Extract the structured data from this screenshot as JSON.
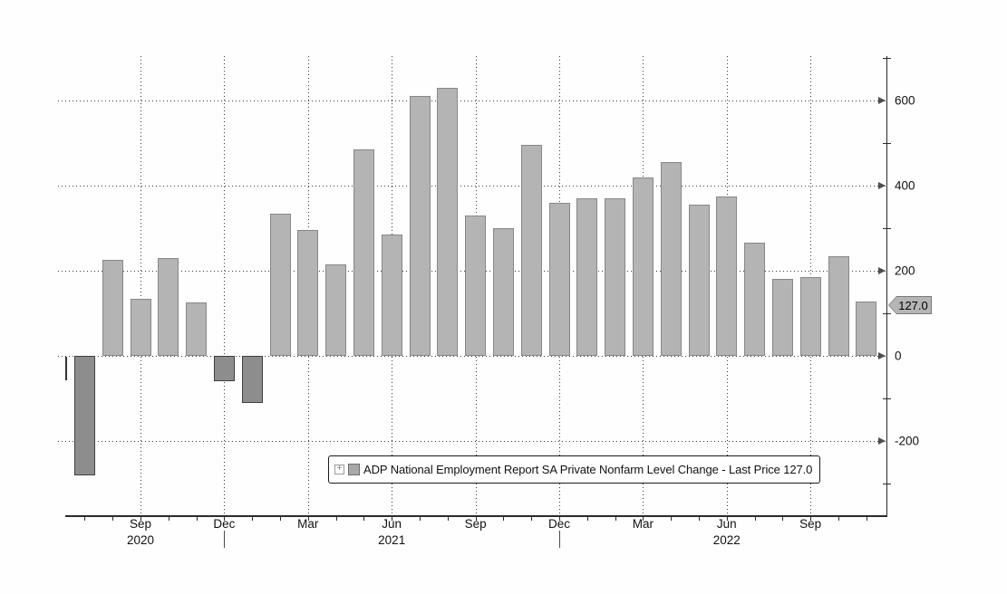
{
  "legend": {
    "expand_icon_label": "+",
    "label": "ADP National Employment Report SA Private Nonfarm Level Change - Last Price 127.0"
  },
  "last_price_tag": "127.0",
  "colors": {
    "bar_positive": "#b4b4b4",
    "bar_positive_border": "#878787",
    "bar_negative": "#8d8d8d",
    "bar_negative_border": "#3f3f3f",
    "grid": "#3a3a3a",
    "axis": "#2b2b2b",
    "text": "#111111",
    "tag_fill": "#b5b5b5",
    "tag_border": "#787878",
    "legend_swatch": "#a9a9a9"
  },
  "chart_data": {
    "type": "bar",
    "title": "ADP National Employment Report SA Private Nonfarm Level Change",
    "legend_label": "ADP National Employment Report SA Private Nonfarm Level Change - Last Price 127.0",
    "last_price": 127.0,
    "grid": "dotted",
    "legend_position": "bottom-center-inside",
    "categories": [
      "Jul 2020",
      "Aug 2020",
      "Sep 2020",
      "Oct 2020",
      "Nov 2020",
      "Dec 2020",
      "Jan 2021",
      "Feb 2021",
      "Mar 2021",
      "Apr 2021",
      "May 2021",
      "Jun 2021",
      "Jul 2021",
      "Aug 2021",
      "Sep 2021",
      "Oct 2021",
      "Nov 2021",
      "Dec 2021",
      "Jan 2022",
      "Feb 2022",
      "Mar 2022",
      "Apr 2022",
      "May 2022",
      "Jun 2022",
      "Jul 2022",
      "Aug 2022",
      "Sep 2022",
      "Oct 2022",
      "Nov 2022"
    ],
    "values": [
      -280,
      225,
      135,
      230,
      125,
      -60,
      -110,
      335,
      295,
      215,
      485,
      285,
      610,
      630,
      330,
      300,
      495,
      360,
      370,
      370,
      420,
      455,
      355,
      375,
      265,
      180,
      185,
      235,
      127
    ],
    "y_axis": {
      "side": "right",
      "major_ticks": [
        600,
        400,
        200,
        0,
        -200
      ],
      "minor_ticks": [
        700,
        500,
        300,
        100,
        -100,
        -300
      ],
      "ylim": [
        -375,
        705
      ]
    },
    "x_axis": {
      "labeled_months": [
        "Mar",
        "Jun",
        "Sep",
        "Dec"
      ],
      "year_labels": [
        {
          "label": "2020",
          "index": 2
        },
        {
          "label": "2021",
          "index": 11
        },
        {
          "label": "2022",
          "index": 23
        }
      ],
      "year_separator_indices": [
        5,
        17
      ]
    }
  }
}
